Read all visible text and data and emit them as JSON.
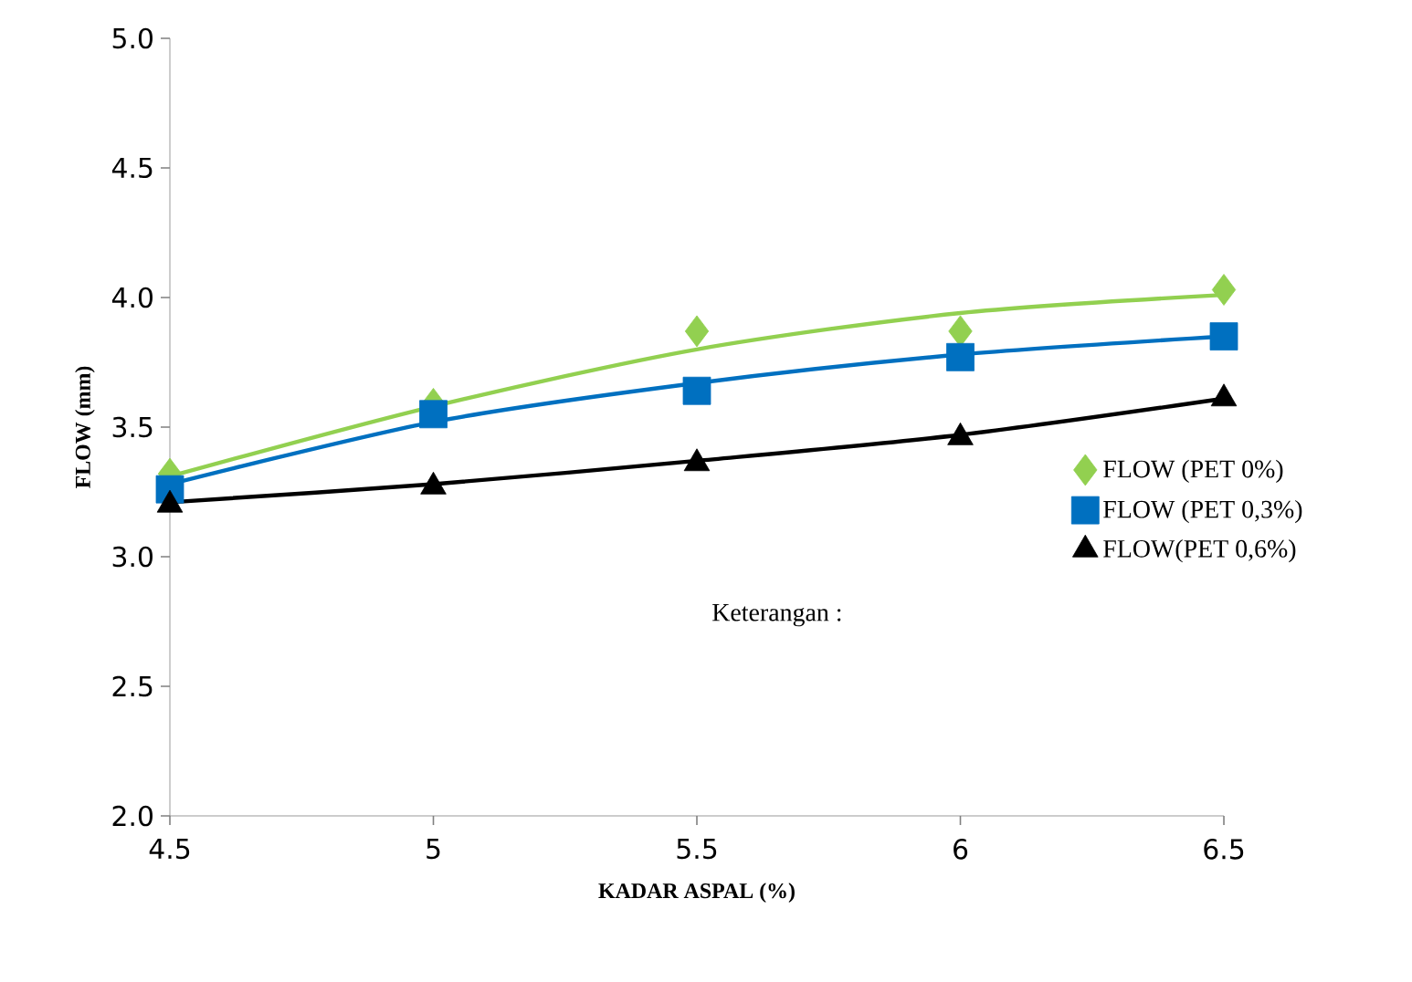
{
  "chart_data": {
    "type": "scatter",
    "xlabel": "KADAR ASPAL (%)",
    "ylabel": "FLOW (mm)",
    "x": [
      4.5,
      5,
      5.5,
      6,
      6.5
    ],
    "series": [
      {
        "name": "FLOW (PET 0%)",
        "color": "#92d050",
        "marker": "diamond",
        "values": [
          3.32,
          3.59,
          3.87,
          3.87,
          4.03
        ]
      },
      {
        "name": "FLOW (PET 0,3%)",
        "color": "#0070c0",
        "marker": "square",
        "values": [
          3.26,
          3.55,
          3.64,
          3.77,
          3.85
        ]
      },
      {
        "name": "FLOW(PET 0,6%)",
        "color": "#000000",
        "marker": "triangle",
        "values": [
          3.2,
          3.27,
          3.36,
          3.46,
          3.61
        ]
      },
      {
        "type": "line",
        "color": "#92d050",
        "x": [
          4.5,
          5,
          5.5,
          6,
          6.5
        ],
        "values": [
          3.31,
          3.58,
          3.8,
          3.94,
          4.01
        ]
      },
      {
        "type": "line",
        "color": "#0070c0",
        "x": [
          4.5,
          5,
          5.5,
          6,
          6.5
        ],
        "values": [
          3.28,
          3.52,
          3.67,
          3.78,
          3.85
        ]
      },
      {
        "type": "line",
        "color": "#000000",
        "x": [
          4.5,
          5,
          5.5,
          6,
          6.5
        ],
        "values": [
          3.21,
          3.28,
          3.37,
          3.47,
          3.61
        ]
      }
    ],
    "xlim": [
      4.5,
      6.5
    ],
    "xticks": [
      4.5,
      5,
      5.5,
      6,
      6.5
    ],
    "ylim": [
      2,
      5
    ],
    "yticks": [
      {
        "value": 2,
        "label": "2.0"
      },
      {
        "value": 2.5,
        "label": "2.5"
      },
      {
        "value": 3,
        "label": "3.0"
      },
      {
        "value": 3.5,
        "label": "3.5"
      },
      {
        "value": 4,
        "label": "4.0"
      },
      {
        "value": 4.5,
        "label": "4.5"
      },
      {
        "value": 5,
        "label": "5.0"
      }
    ],
    "grid": false,
    "legend": "right",
    "annotations": [
      "Keterangan :"
    ]
  }
}
